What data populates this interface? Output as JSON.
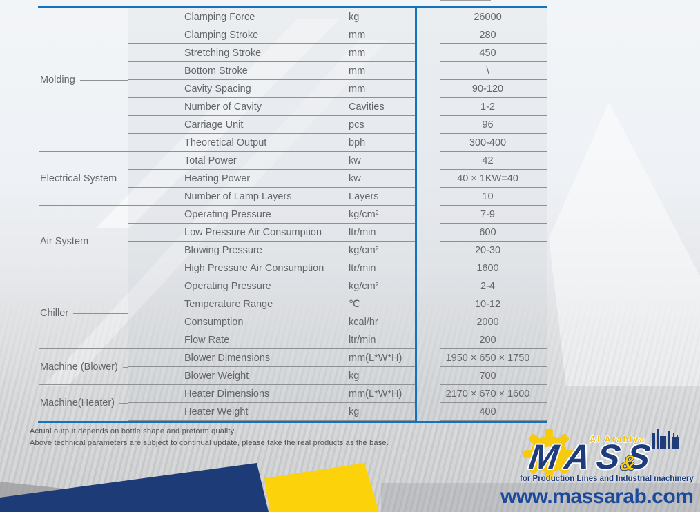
{
  "table": {
    "groups": [
      {
        "category": "Molding",
        "rows": [
          [
            "Clamping Force",
            "kg",
            "26000"
          ],
          [
            "Clamping Stroke",
            "mm",
            "280"
          ],
          [
            "Stretching Stroke",
            "mm",
            "450"
          ],
          [
            "Bottom Stroke",
            "mm",
            "\\"
          ],
          [
            "Cavity Spacing",
            "mm",
            "90-120"
          ],
          [
            "Number of Cavity",
            "Cavities",
            "1-2"
          ],
          [
            "Carriage Unit",
            "pcs",
            "96"
          ],
          [
            "Theoretical Output",
            "bph",
            "300-400"
          ]
        ]
      },
      {
        "category": "Electrical System",
        "rows": [
          [
            "Total Power",
            "kw",
            "42"
          ],
          [
            "Heating Power",
            "kw",
            "40 × 1KW=40"
          ],
          [
            "Number of Lamp Layers",
            "Layers",
            "10"
          ]
        ]
      },
      {
        "category": "Air System",
        "rows": [
          [
            "Operating Pressure",
            "kg/cm²",
            "7-9"
          ],
          [
            "Low Pressure Air Consumption",
            "ltr/min",
            "600"
          ],
          [
            "Blowing Pressure",
            "kg/cm²",
            "20-30"
          ],
          [
            "High Pressure Air Consumption",
            "ltr/min",
            "1600"
          ]
        ]
      },
      {
        "category": "Chiller",
        "rows": [
          [
            "Operating Pressure",
            "kg/cm²",
            "2-4"
          ],
          [
            "Temperature Range",
            "℃",
            "10-12"
          ],
          [
            "Consumption",
            "kcal/hr",
            "2000"
          ],
          [
            "Flow Rate",
            "ltr/min",
            "200"
          ]
        ]
      },
      {
        "category": "Machine (Blower)",
        "rows": [
          [
            "Blower Dimensions",
            "mm(L*W*H)",
            "1950 × 650 × 1750"
          ],
          [
            "Blower Weight",
            "kg",
            "700"
          ]
        ]
      },
      {
        "category": "Machine(Heater)",
        "rows": [
          [
            "Heater Dimensions",
            "mm(L*W*H)",
            "2170 × 670 × 1600"
          ],
          [
            "Heater Weight",
            "kg",
            "400"
          ]
        ]
      }
    ]
  },
  "notes": [
    "Actual output depends on bottle shape and preform quality.",
    "Above technical parameters are subject to continual update, please take the real products as the base."
  ],
  "logo": {
    "brand": "MASS",
    "ampersand": "&",
    "region": "Al Arabiya",
    "tagline": "for Production Lines and Industrial machinery"
  },
  "website": "www.massarab.com",
  "colors": {
    "accent_blue": "#1373bd",
    "line_gray": "#8d9094",
    "text_gray": "#646568",
    "navy": "#1e3b7c",
    "yellow": "#fcd20a",
    "url_blue": "#1c4a9b"
  }
}
